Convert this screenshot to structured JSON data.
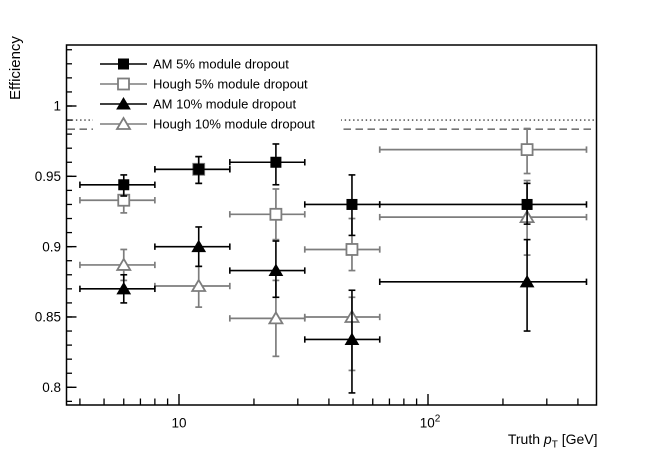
{
  "page": {
    "background": "#ffffff"
  },
  "chart_data": {
    "type": "scatter",
    "title": "",
    "xlabel": "Truth p_T [GeV]",
    "xlabel_parts": {
      "prefix": "Truth ",
      "italic": "p",
      "sub": "T",
      "suffix": " [GeV]"
    },
    "ylabel": "Efficiency",
    "x_scale": "log",
    "x_range_gev": [
      3.5,
      480
    ],
    "y_range": [
      0.787,
      1.043
    ],
    "grid": false,
    "x_major_ticks": [
      {
        "value": 10,
        "label": "10",
        "sup": ""
      },
      {
        "value": 100,
        "label": "10",
        "sup": "2"
      }
    ],
    "x_minor_ticks": [
      4,
      5,
      6,
      7,
      8,
      9,
      20,
      30,
      40,
      50,
      60,
      70,
      80,
      90,
      200,
      300,
      400
    ],
    "y_major_ticks": [
      {
        "value": 1.0,
        "label": "1"
      },
      {
        "value": 0.95,
        "label": "0.95"
      },
      {
        "value": 0.9,
        "label": "0.9"
      },
      {
        "value": 0.85,
        "label": "0.85"
      },
      {
        "value": 0.8,
        "label": "0.8"
      }
    ],
    "y_minor_step": 0.01,
    "reference_lines": [
      {
        "y": 0.99,
        "style": "dotted",
        "color": "#3a3a3a"
      },
      {
        "y": 0.9835,
        "style": "dashed",
        "color": "#757575"
      }
    ],
    "bin_edges_gev": [
      4,
      8,
      16,
      32,
      64,
      433
    ],
    "x_gev": [
      6,
      12,
      24.5,
      49.5,
      250
    ],
    "series": [
      {
        "name": "AM 5% module dropout",
        "marker": "filled-square",
        "color": "#000000",
        "values": [
          0.944,
          0.955,
          0.96,
          0.93,
          0.93
        ],
        "y_lo": [
          0.936,
          0.945,
          0.944,
          0.908,
          0.916
        ],
        "y_hi": [
          0.951,
          0.964,
          0.973,
          0.951,
          0.945
        ]
      },
      {
        "name": "Hough 5% module dropout",
        "marker": "open-square",
        "color": "#7d7d7d",
        "values": [
          0.933,
          0.955,
          0.923,
          0.898,
          0.969
        ],
        "y_lo": [
          0.924,
          0.945,
          0.905,
          0.883,
          0.952
        ],
        "y_hi": [
          0.941,
          0.964,
          0.941,
          0.92,
          0.984
        ]
      },
      {
        "name": "AM 10% module dropout",
        "marker": "filled-triangle",
        "color": "#000000",
        "values": [
          0.87,
          0.9,
          0.883,
          0.834,
          0.875
        ],
        "y_lo": [
          0.86,
          0.886,
          0.864,
          0.796,
          0.84
        ],
        "y_hi": [
          0.88,
          0.914,
          0.904,
          0.869,
          0.905
        ]
      },
      {
        "name": "Hough 10% module dropout",
        "marker": "open-triangle",
        "color": "#7d7d7d",
        "values": [
          0.887,
          0.872,
          0.849,
          0.85,
          0.921
        ],
        "y_lo": [
          0.876,
          0.857,
          0.822,
          0.812,
          0.894
        ],
        "y_hi": [
          0.898,
          0.886,
          0.876,
          0.864,
          0.947
        ]
      }
    ],
    "draw_order": [
      1,
      3,
      0,
      2
    ],
    "legend_position": "top-left"
  }
}
